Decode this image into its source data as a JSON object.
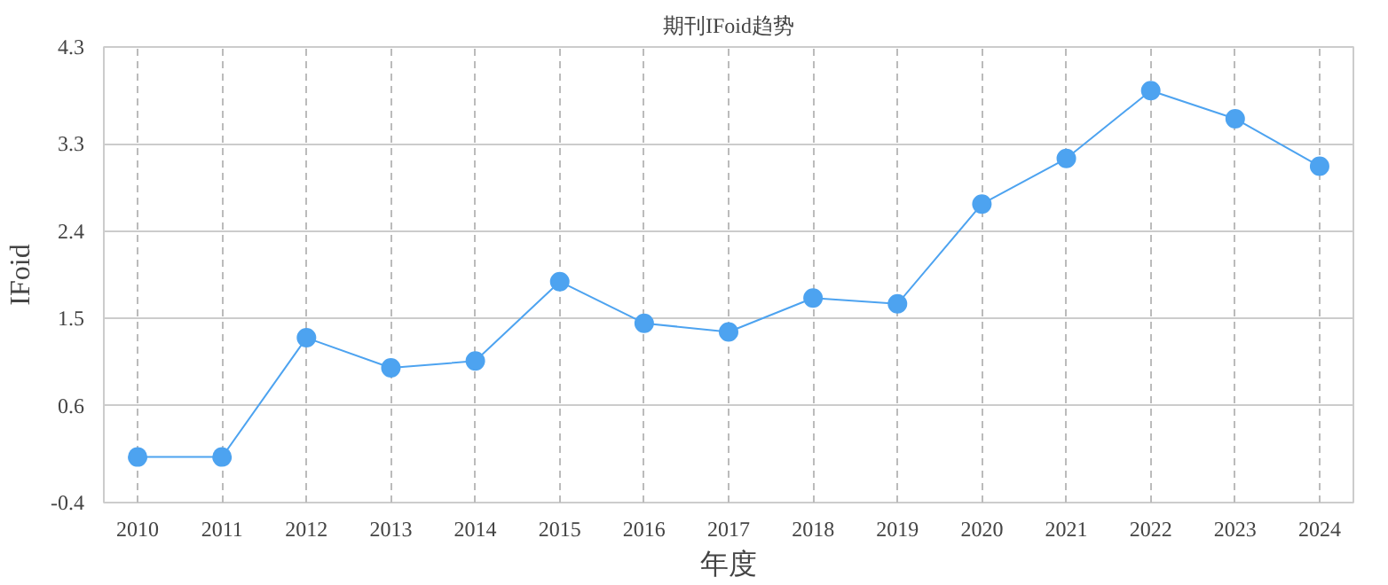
{
  "chart_data": {
    "type": "line",
    "title": "期刊IFoid趋势",
    "xlabel": "年度",
    "ylabel": "IFoid",
    "categories": [
      "2010",
      "2011",
      "2012",
      "2013",
      "2014",
      "2015",
      "2016",
      "2017",
      "2018",
      "2019",
      "2020",
      "2021",
      "2022",
      "2023",
      "2024"
    ],
    "series": [
      {
        "color": "#4da3f0",
        "values": [
          0.07,
          0.07,
          1.3,
          0.99,
          1.06,
          1.88,
          1.45,
          1.36,
          1.71,
          1.65,
          2.68,
          3.15,
          3.85,
          3.56,
          3.07
        ]
      }
    ],
    "ylim": [
      -0.4,
      4.3
    ],
    "yticks": [
      -0.4,
      0.6,
      1.5,
      2.4,
      3.3,
      4.3
    ],
    "grid": true,
    "marker": "circle",
    "line_style": "solid"
  }
}
